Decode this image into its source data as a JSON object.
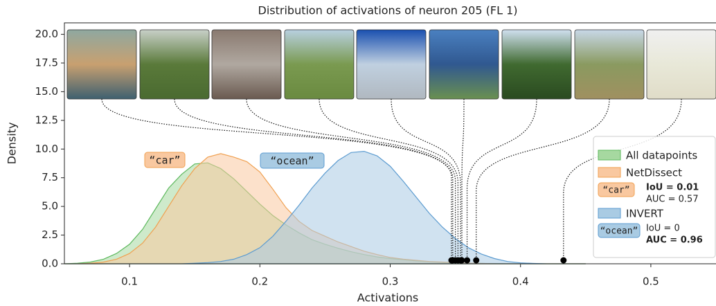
{
  "chart_data": {
    "type": "area",
    "title": "Distribution of activations of neuron 205 (FL 1)",
    "xlabel": "Activations",
    "ylabel": "Density",
    "x": [
      0.05,
      0.06,
      0.07,
      0.08,
      0.09,
      0.1,
      0.11,
      0.12,
      0.13,
      0.14,
      0.15,
      0.16,
      0.17,
      0.18,
      0.19,
      0.2,
      0.21,
      0.22,
      0.23,
      0.24,
      0.25,
      0.26,
      0.27,
      0.28,
      0.29,
      0.3,
      0.31,
      0.32,
      0.33,
      0.34,
      0.35,
      0.36,
      0.37,
      0.38,
      0.39,
      0.4,
      0.41,
      0.42,
      0.43,
      0.44,
      0.45
    ],
    "series": [
      {
        "name": "All datapoints",
        "color": "#5cb85c",
        "fill": "#a6d8a0",
        "values": [
          0,
          0.05,
          0.15,
          0.4,
          0.9,
          1.7,
          3.0,
          4.8,
          6.6,
          7.8,
          8.7,
          8.8,
          8.3,
          7.4,
          6.3,
          5.2,
          4.2,
          3.4,
          2.7,
          2.1,
          1.7,
          1.35,
          1.05,
          0.8,
          0.6,
          0.45,
          0.35,
          0.25,
          0.18,
          0.12,
          0.08,
          0.05,
          0.03,
          0.02,
          0.01,
          0,
          0,
          0,
          0,
          0,
          0
        ]
      },
      {
        "name": "NetDissect",
        "color": "#f0a050",
        "fill": "#f9c8a0",
        "values": [
          0,
          0,
          0.05,
          0.15,
          0.4,
          0.9,
          1.8,
          3.2,
          5.0,
          6.8,
          8.3,
          9.3,
          9.6,
          9.3,
          8.9,
          8.0,
          6.5,
          4.9,
          3.7,
          2.9,
          2.4,
          1.9,
          1.5,
          1.1,
          0.8,
          0.55,
          0.4,
          0.3,
          0.2,
          0.15,
          0.1,
          0.06,
          0.03,
          0.01,
          0,
          0,
          0,
          0,
          0,
          0,
          0
        ]
      },
      {
        "name": "INVERT",
        "color": "#5b9bd0",
        "fill": "#a9cbe3",
        "values": [
          0,
          0,
          0,
          0,
          0,
          0,
          0,
          0,
          0,
          0,
          0.05,
          0.1,
          0.2,
          0.4,
          0.8,
          1.4,
          2.4,
          3.7,
          5.1,
          6.6,
          7.9,
          9.0,
          9.7,
          9.8,
          9.4,
          8.5,
          7.2,
          5.8,
          4.4,
          3.2,
          2.2,
          1.4,
          0.85,
          0.45,
          0.2,
          0.08,
          0.03,
          0,
          0,
          0,
          0
        ]
      }
    ],
    "xlim": [
      0.05,
      0.55
    ],
    "ylim": [
      0,
      21
    ],
    "xticks": [
      0.1,
      0.2,
      0.3,
      0.4,
      0.5
    ],
    "yticks": [
      {
        "value": 0,
        "label": "0.0"
      },
      {
        "value": 2.5,
        "label": "2.5"
      },
      {
        "value": 5,
        "label": "5.0"
      },
      {
        "value": 7.5,
        "label": "7.5"
      },
      {
        "value": 10,
        "label": "10.0"
      },
      {
        "value": 12.5,
        "label": "12.5"
      },
      {
        "value": 15,
        "label": "15.0"
      },
      {
        "value": 17.5,
        "label": "17.5"
      },
      {
        "value": 20,
        "label": "20.0"
      }
    ],
    "highlighted_points": [
      0.347,
      0.348,
      0.35,
      0.352,
      0.354,
      0.355,
      0.359,
      0.366,
      0.433
    ],
    "annotations": [
      {
        "text": "“car”",
        "series": 1
      },
      {
        "text": "“ocean”",
        "series": 2
      }
    ],
    "legend_details": [
      null,
      {
        "badge": "“car”",
        "iou": "IoU = 0.01",
        "auc": "AUC = 0.57"
      },
      {
        "badge": "“ocean”",
        "iou": "IoU = 0",
        "auc": "AUC = 0.96"
      }
    ],
    "legend": "right"
  }
}
